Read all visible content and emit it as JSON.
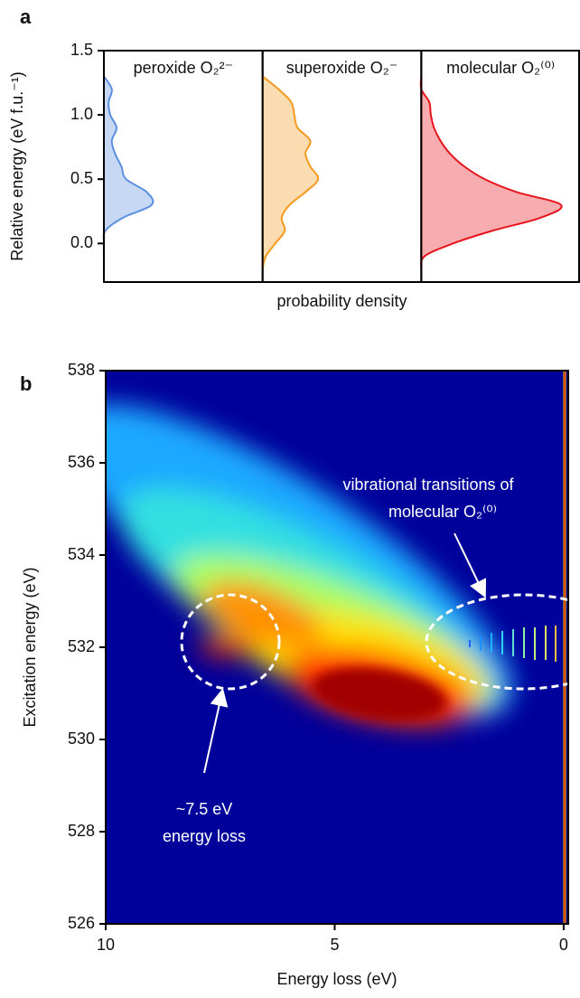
{
  "chart_data": [
    {
      "type": "density",
      "panel_label": "a",
      "y_label": "Relative energy (eV f.u.⁻¹)",
      "x_label": "probability density",
      "y": [
        -0.2,
        -0.1,
        0,
        0.1,
        0.2,
        0.3,
        0.4,
        0.5,
        0.6,
        0.7,
        0.8,
        0.9,
        1.0,
        1.1,
        1.2,
        1.3
      ],
      "series": [
        {
          "name": "peroxide O₂²⁻",
          "color": "#5b8fe0",
          "values": [
            0,
            0,
            0,
            0.01,
            0.12,
            0.3,
            0.27,
            0.14,
            0.11,
            0.07,
            0.05,
            0.08,
            0.04,
            0.03,
            0.05,
            0
          ]
        },
        {
          "name": "superoxide O₂⁻",
          "color": "#f39a1e",
          "values": [
            0,
            0.02,
            0.08,
            0.14,
            0.12,
            0.17,
            0.27,
            0.35,
            0.3,
            0.27,
            0.3,
            0.22,
            0.2,
            0.18,
            0.1,
            0
          ]
        },
        {
          "name": "molecular O₂⁽⁰⁾",
          "color": "#e8141c",
          "values": [
            0,
            0.02,
            0.2,
            0.45,
            0.75,
            0.88,
            0.6,
            0.4,
            0.27,
            0.18,
            0.12,
            0.08,
            0.06,
            0.05,
            0,
            0
          ]
        }
      ],
      "ylim": [
        -0.3,
        1.5
      ],
      "yticks": [
        {
          "value": 0,
          "label": "0.0"
        },
        0.5,
        {
          "value": 1,
          "label": "1.0"
        },
        1.5
      ]
    },
    {
      "type": "heatmap",
      "panel_label": "b",
      "x_label": "Energy loss (eV)",
      "y_label": "Excitation energy (eV)",
      "xlim": [
        10,
        -0.1
      ],
      "xticks": [
        10,
        5,
        0
      ],
      "ylim": [
        526,
        538
      ],
      "yticks": [
        526,
        528,
        530,
        532,
        534,
        536,
        538
      ],
      "annotations": [
        {
          "lines": [
            "vibrational transitions of",
            "molecular O₂⁽⁰⁾"
          ]
        },
        {
          "lines": [
            "~7.5 eV",
            "energy loss"
          ]
        }
      ]
    }
  ]
}
